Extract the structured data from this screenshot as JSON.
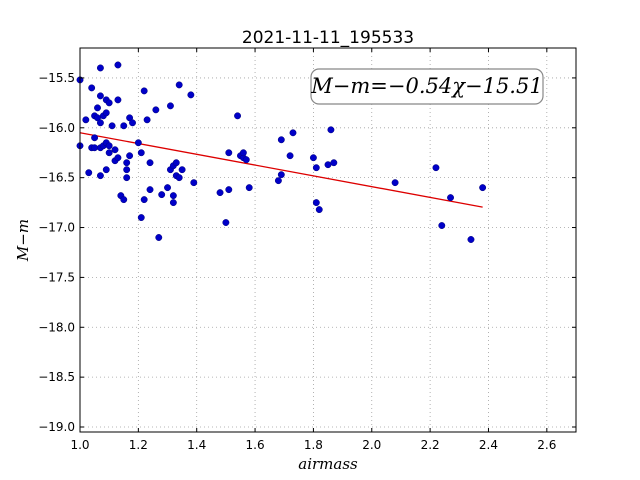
{
  "chart_data": {
    "type": "scatter",
    "title": "2021-11-11_195533",
    "xlabel": "airmass",
    "ylabel": "M−m",
    "xlim": [
      1.0,
      2.7
    ],
    "ylim": [
      -19.05,
      -15.2
    ],
    "xticks": [
      1.0,
      1.2,
      1.4,
      1.6,
      1.8,
      2.0,
      2.2,
      2.4,
      2.6
    ],
    "xtick_labels": [
      "1.0",
      "1.2",
      "1.4",
      "1.6",
      "1.8",
      "2.0",
      "2.2",
      "2.4",
      "2.6"
    ],
    "yticks": [
      -15.5,
      -16.0,
      -16.5,
      -17.0,
      -17.5,
      -18.0,
      -18.5,
      -19.0
    ],
    "ytick_labels": [
      "−15.5",
      "−16.0",
      "−16.5",
      "−17.0",
      "−17.5",
      "−18.0",
      "−18.5",
      "−19.0"
    ],
    "grid": true,
    "annotation": "M−m=−0.54χ−15.51",
    "annotation_position": "top-right",
    "colors": {
      "points": "#0000c8",
      "fit": "#dd0000",
      "grid": "#a0a0a0"
    },
    "series": [
      {
        "type": "scatter",
        "points": [
          [
            1.0,
            -15.52
          ],
          [
            1.0,
            -16.18
          ],
          [
            1.02,
            -15.92
          ],
          [
            1.03,
            -16.45
          ],
          [
            1.04,
            -15.6
          ],
          [
            1.04,
            -16.2
          ],
          [
            1.05,
            -15.88
          ],
          [
            1.05,
            -16.1
          ],
          [
            1.05,
            -16.2
          ],
          [
            1.06,
            -15.8
          ],
          [
            1.06,
            -15.9
          ],
          [
            1.07,
            -15.68
          ],
          [
            1.07,
            -15.95
          ],
          [
            1.07,
            -16.2
          ],
          [
            1.07,
            -16.48
          ],
          [
            1.07,
            -15.4
          ],
          [
            1.08,
            -15.88
          ],
          [
            1.08,
            -16.18
          ],
          [
            1.09,
            -15.72
          ],
          [
            1.09,
            -15.85
          ],
          [
            1.09,
            -16.15
          ],
          [
            1.09,
            -16.42
          ],
          [
            1.1,
            -15.75
          ],
          [
            1.1,
            -16.18
          ],
          [
            1.1,
            -16.25
          ],
          [
            1.11,
            -15.98
          ],
          [
            1.12,
            -16.22
          ],
          [
            1.12,
            -16.33
          ],
          [
            1.13,
            -15.37
          ],
          [
            1.13,
            -15.72
          ],
          [
            1.13,
            -16.3
          ],
          [
            1.14,
            -16.68
          ],
          [
            1.15,
            -16.72
          ],
          [
            1.15,
            -15.98
          ],
          [
            1.16,
            -16.42
          ],
          [
            1.16,
            -16.5
          ],
          [
            1.16,
            -16.35
          ],
          [
            1.17,
            -15.9
          ],
          [
            1.17,
            -16.28
          ],
          [
            1.18,
            -15.95
          ],
          [
            1.2,
            -16.15
          ],
          [
            1.21,
            -16.25
          ],
          [
            1.21,
            -16.9
          ],
          [
            1.22,
            -15.63
          ],
          [
            1.22,
            -16.72
          ],
          [
            1.23,
            -15.92
          ],
          [
            1.24,
            -16.62
          ],
          [
            1.24,
            -16.35
          ],
          [
            1.26,
            -15.82
          ],
          [
            1.27,
            -17.1
          ],
          [
            1.28,
            -16.67
          ],
          [
            1.3,
            -16.6
          ],
          [
            1.31,
            -15.78
          ],
          [
            1.31,
            -16.42
          ],
          [
            1.32,
            -16.38
          ],
          [
            1.32,
            -16.68
          ],
          [
            1.32,
            -16.75
          ],
          [
            1.33,
            -16.35
          ],
          [
            1.33,
            -16.48
          ],
          [
            1.34,
            -15.57
          ],
          [
            1.34,
            -16.5
          ],
          [
            1.35,
            -16.42
          ],
          [
            1.38,
            -15.67
          ],
          [
            1.39,
            -16.55
          ],
          [
            1.48,
            -16.65
          ],
          [
            1.5,
            -16.95
          ],
          [
            1.51,
            -16.25
          ],
          [
            1.51,
            -16.62
          ],
          [
            1.54,
            -15.88
          ],
          [
            1.55,
            -16.28
          ],
          [
            1.56,
            -16.3
          ],
          [
            1.56,
            -16.25
          ],
          [
            1.57,
            -16.32
          ],
          [
            1.58,
            -16.6
          ],
          [
            1.68,
            -16.53
          ],
          [
            1.69,
            -16.47
          ],
          [
            1.69,
            -16.12
          ],
          [
            1.72,
            -16.28
          ],
          [
            1.73,
            -16.05
          ],
          [
            1.8,
            -16.3
          ],
          [
            1.81,
            -16.75
          ],
          [
            1.81,
            -16.4
          ],
          [
            1.82,
            -16.82
          ],
          [
            1.85,
            -16.37
          ],
          [
            1.86,
            -16.02
          ],
          [
            1.87,
            -16.35
          ],
          [
            2.08,
            -16.55
          ],
          [
            2.22,
            -16.4
          ],
          [
            2.24,
            -16.98
          ],
          [
            2.27,
            -16.7
          ],
          [
            2.34,
            -17.12
          ],
          [
            2.38,
            -16.6
          ]
        ]
      },
      {
        "name": "fit",
        "type": "line",
        "slope": -0.54,
        "intercept": -15.51,
        "x_range": [
          1.0,
          2.38
        ]
      }
    ]
  }
}
